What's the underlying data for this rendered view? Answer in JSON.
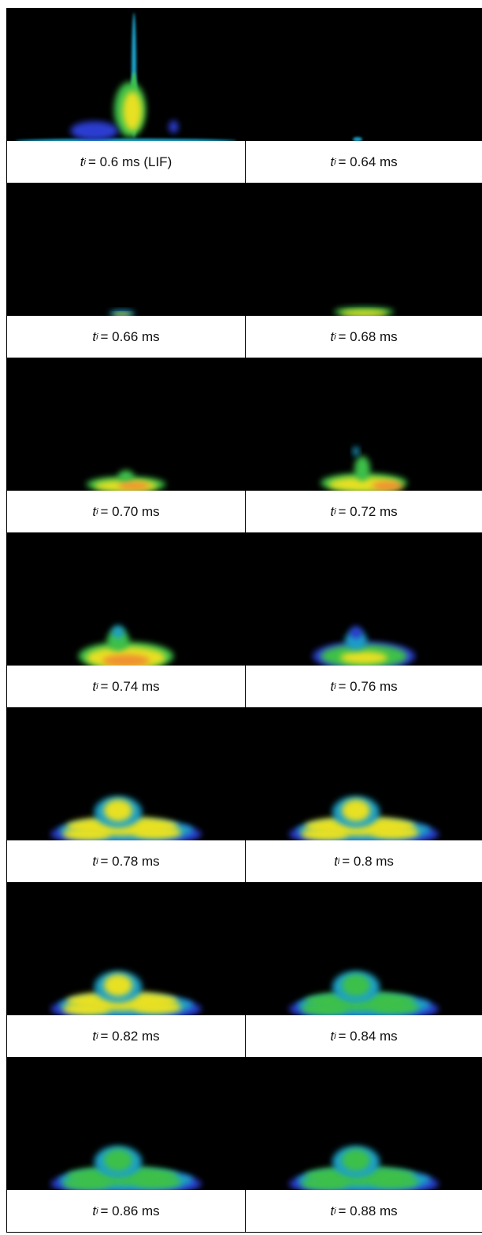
{
  "panels": [
    {
      "symbol": "t",
      "subscript": "i",
      "text": "= 0.6 ms (LIF)"
    },
    {
      "symbol": "t",
      "subscript": "i",
      "text": "= 0.64 ms"
    },
    {
      "symbol": "t",
      "subscript": "i",
      "text": "= 0.66 ms"
    },
    {
      "symbol": "t",
      "subscript": "i",
      "text": "= 0.68 ms"
    },
    {
      "symbol": "t",
      "subscript": "i",
      "text": "= 0.70 ms"
    },
    {
      "symbol": "t",
      "subscript": "i",
      "text": "= 0.72 ms"
    },
    {
      "symbol": "t",
      "subscript": "i",
      "text": "= 0.74 ms"
    },
    {
      "symbol": "t",
      "subscript": "i",
      "text": "= 0.76 ms"
    },
    {
      "symbol": "t",
      "subscript": "i",
      "text": "= 0.78 ms"
    },
    {
      "symbol": "t",
      "subscript": "i",
      "text": "= 0.8 ms"
    },
    {
      "symbol": "t",
      "subscript": "i",
      "text": "= 0.82 ms"
    },
    {
      "symbol": "t",
      "subscript": "i",
      "text": "= 0.84 ms"
    },
    {
      "symbol": "t",
      "subscript": "i",
      "text": "= 0.86 ms"
    },
    {
      "symbol": "t",
      "subscript": "i",
      "text": "= 0.88 ms"
    }
  ]
}
